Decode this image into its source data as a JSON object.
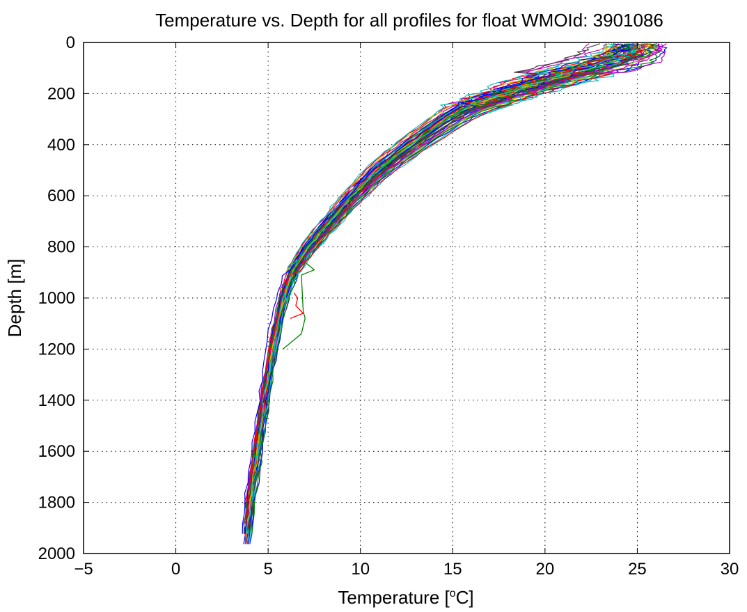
{
  "chart_data": {
    "type": "line",
    "title": "Temperature vs. Depth for all profiles for float WMOId: 3901086",
    "xlabel_main": "Temperature [",
    "xlabel_sup": "o",
    "xlabel_end": "C]",
    "ylabel": "Depth [m]",
    "xlim": [
      -5,
      30
    ],
    "ylim": [
      0,
      2000
    ],
    "y_reversed": true,
    "grid": true,
    "legend": "none",
    "x_ticks": [
      "-5",
      "0",
      "5",
      "10",
      "15",
      "20",
      "25",
      "30"
    ],
    "y_ticks": [
      "0",
      "200",
      "400",
      "600",
      "800",
      "1000",
      "1200",
      "1400",
      "1600",
      "1800",
      "2000"
    ],
    "profile_count_estimate": 60,
    "series_colors": [
      "#0000ff",
      "#008000",
      "#ff0000",
      "#00bfbf",
      "#bf00bf",
      "#bfbf00",
      "#404040"
    ],
    "mean_profile": {
      "depth": [
        0,
        50,
        100,
        150,
        200,
        250,
        300,
        400,
        500,
        600,
        700,
        800,
        900,
        1000,
        1200,
        1400,
        1600,
        1800,
        1975
      ],
      "temperature": [
        25.0,
        24.5,
        22.5,
        20.0,
        18.0,
        16.0,
        14.8,
        12.8,
        11.0,
        9.6,
        8.4,
        7.2,
        6.3,
        5.8,
        5.2,
        4.8,
        4.4,
        4.0,
        3.8
      ]
    },
    "anomalies": [
      {
        "color": "#008000",
        "depth": [
          860,
          890,
          910,
          1050,
          1080,
          1140,
          1200
        ],
        "temperature": [
          7.0,
          7.5,
          6.8,
          6.9,
          7.0,
          6.8,
          5.8
        ]
      },
      {
        "color": "#ff0000",
        "depth": [
          980,
          1000,
          1030,
          1060,
          1080
        ],
        "temperature": [
          6.4,
          6.6,
          6.5,
          6.9,
          6.2
        ]
      }
    ]
  }
}
